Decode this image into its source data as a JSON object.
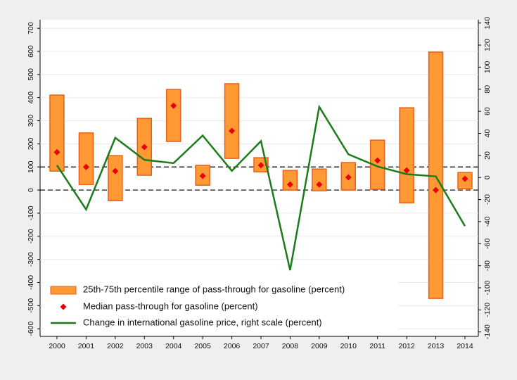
{
  "chart_data": {
    "type": "range-bar",
    "categories": [
      "2000",
      "2001",
      "2002",
      "2003",
      "2004",
      "2005",
      "2006",
      "2007",
      "2008",
      "2009",
      "2010",
      "2011",
      "2012",
      "2013",
      "2014"
    ],
    "series": [
      {
        "name": "25th-75th percentile range of pass-through for gasoline (percent)",
        "color": "#ff9933",
        "edgecolor": "#e8601c",
        "low": [
          82,
          24,
          -46,
          64,
          210,
          21,
          137,
          79,
          0,
          -3,
          0,
          3,
          -55,
          -469,
          6
        ],
        "high": [
          411,
          247,
          149,
          310,
          435,
          107,
          460,
          140,
          85,
          91,
          119,
          216,
          356,
          597,
          76
        ]
      },
      {
        "name": "Median pass-through for gasoline (percent)",
        "color": "#e8000b",
        "values": [
          164,
          100,
          82,
          186,
          365,
          61,
          256,
          107,
          24,
          24,
          55,
          128,
          85,
          0,
          49
        ]
      },
      {
        "name": "Change in international gasoline price, right scale (percent)",
        "color": "#1a7d1a",
        "axis": "y2",
        "values": [
          11,
          -29,
          36,
          16,
          13,
          38,
          6,
          33,
          -84,
          64,
          21,
          10,
          3,
          1,
          -44
        ]
      }
    ],
    "ylim": [
      -633,
      737
    ],
    "yticks": [
      -600,
      -500,
      -400,
      -300,
      -200,
      -100,
      0,
      100,
      200,
      300,
      400,
      500,
      600,
      700
    ],
    "y2lim": [
      -144,
      143
    ],
    "y2ticks": [
      -140,
      -120,
      -100,
      -80,
      -60,
      -40,
      -20,
      0,
      20,
      40,
      60,
      80,
      100,
      120,
      140
    ],
    "hlines": [
      0,
      100
    ],
    "grid": true
  }
}
